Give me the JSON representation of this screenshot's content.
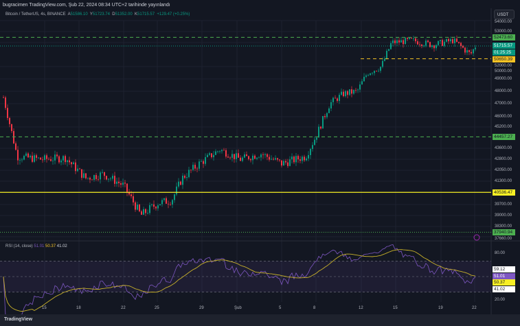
{
  "header": {
    "published": "bugracimen TradingView.com, Şub 22, 2024 08:34 UTC+2 tarihinde yayınlandı",
    "symbol": "Bitcoin / TetherUS, 4s, BINANCE",
    "o_label": "A",
    "o": "51586.10",
    "h_label": "Y",
    "h": "51723.74",
    "l_label": "D",
    "l": "51352.00",
    "c_label": "K",
    "c": "51715.57",
    "change": "+129.47 (+0.25%)"
  },
  "currency": "USDT",
  "chart_data": {
    "type": "candlestick",
    "price_ticks": [
      "54000.00",
      "53000.00",
      "52000.00",
      "50000.00",
      "49000.00",
      "48000.00",
      "47000.00",
      "46000.00",
      "45200.00",
      "43600.00",
      "42800.00",
      "42050.00",
      "41300.00",
      "39700.00",
      "39000.00",
      "38300.00",
      "37660.00"
    ],
    "x_ticks": [
      "15",
      "18",
      "22",
      "25",
      "29",
      "Şub",
      "5",
      "8",
      "12",
      "15",
      "19",
      "22"
    ],
    "approx_close_path": [
      47500,
      43000,
      42800,
      42900,
      41500,
      41800,
      41000,
      39000,
      39800,
      40000,
      41500,
      42500,
      43500,
      42800,
      43200,
      42500,
      43000,
      44500,
      47000,
      47800,
      48000,
      49500,
      50000,
      52000,
      52200,
      51800,
      52200,
      51000,
      51700
    ],
    "levels": [
      {
        "price": "52473.60",
        "color": "#4caf50",
        "style": "dashed"
      },
      {
        "price": "50650.39",
        "color": "#f7c325",
        "style": "dashed"
      },
      {
        "price": "44457.27",
        "color": "#4caf50",
        "style": "dashed"
      },
      {
        "price": "40536.47",
        "color": "#f7ef25",
        "style": "solid"
      },
      {
        "price": "37940.94",
        "color": "#4caf50",
        "style": "dotted"
      }
    ],
    "last_price": "51715.57",
    "countdown": "01:25:25",
    "rsi": {
      "label": "RSI (14, close)",
      "rsi": "51.01",
      "ma": "50.37",
      "extra": "41.02",
      "ticks": [
        "80.00",
        "20.00"
      ],
      "tags": [
        "59.12",
        "51.01",
        "50.37",
        "41.02"
      ],
      "bands": [
        70,
        50,
        30
      ]
    }
  },
  "footer": {
    "brand": "TradingView"
  }
}
